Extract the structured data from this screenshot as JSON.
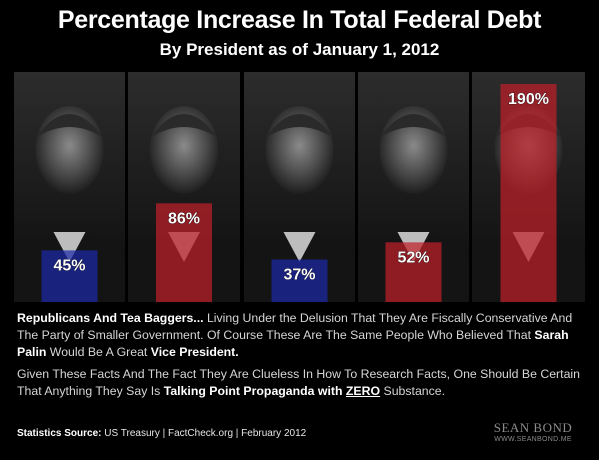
{
  "title": "Percentage Increase In Total Federal Debt",
  "subtitle": "By President as of January 1, 2012",
  "chart_data": {
    "type": "bar",
    "categories": [
      "",
      "",
      "",
      "",
      ""
    ],
    "values": [
      45,
      86,
      37,
      52,
      190
    ],
    "data_labels": [
      "45%",
      "86%",
      "37%",
      "52%",
      "190%"
    ],
    "colors": [
      "#1c2aa8",
      "#c0202a",
      "#1c2aa8",
      "#c0202a",
      "#c0202a"
    ],
    "ylim": [
      0,
      190
    ],
    "grid": false
  },
  "text": {
    "p1_lead": "Republicans And Tea Baggers...",
    "p1_a": " Living Under the Delusion That They Are Fiscally Conservative And The Party of Smaller Government.  Of Course These Are The Same People Who Believed That ",
    "p1_palin": "Sarah Palin",
    "p1_b": " Would Be A Great ",
    "p1_vp": "Vice President.",
    "p2_a": "Given These Facts And The Fact They Are Clueless In How To Research Facts, One Should Be Certain That Anything They Say Is ",
    "p2_tpp": "Talking Point Propaganda",
    "p2_with": " with ",
    "p2_zero": "ZERO",
    "p2_b": " Substance."
  },
  "source": {
    "label": "Statistics Source:",
    "text": " US Treasury | FactCheck.org | February 2012"
  },
  "logo": {
    "name": "SEAN BOND",
    "url": "WWW.SEANBOND.ME"
  }
}
